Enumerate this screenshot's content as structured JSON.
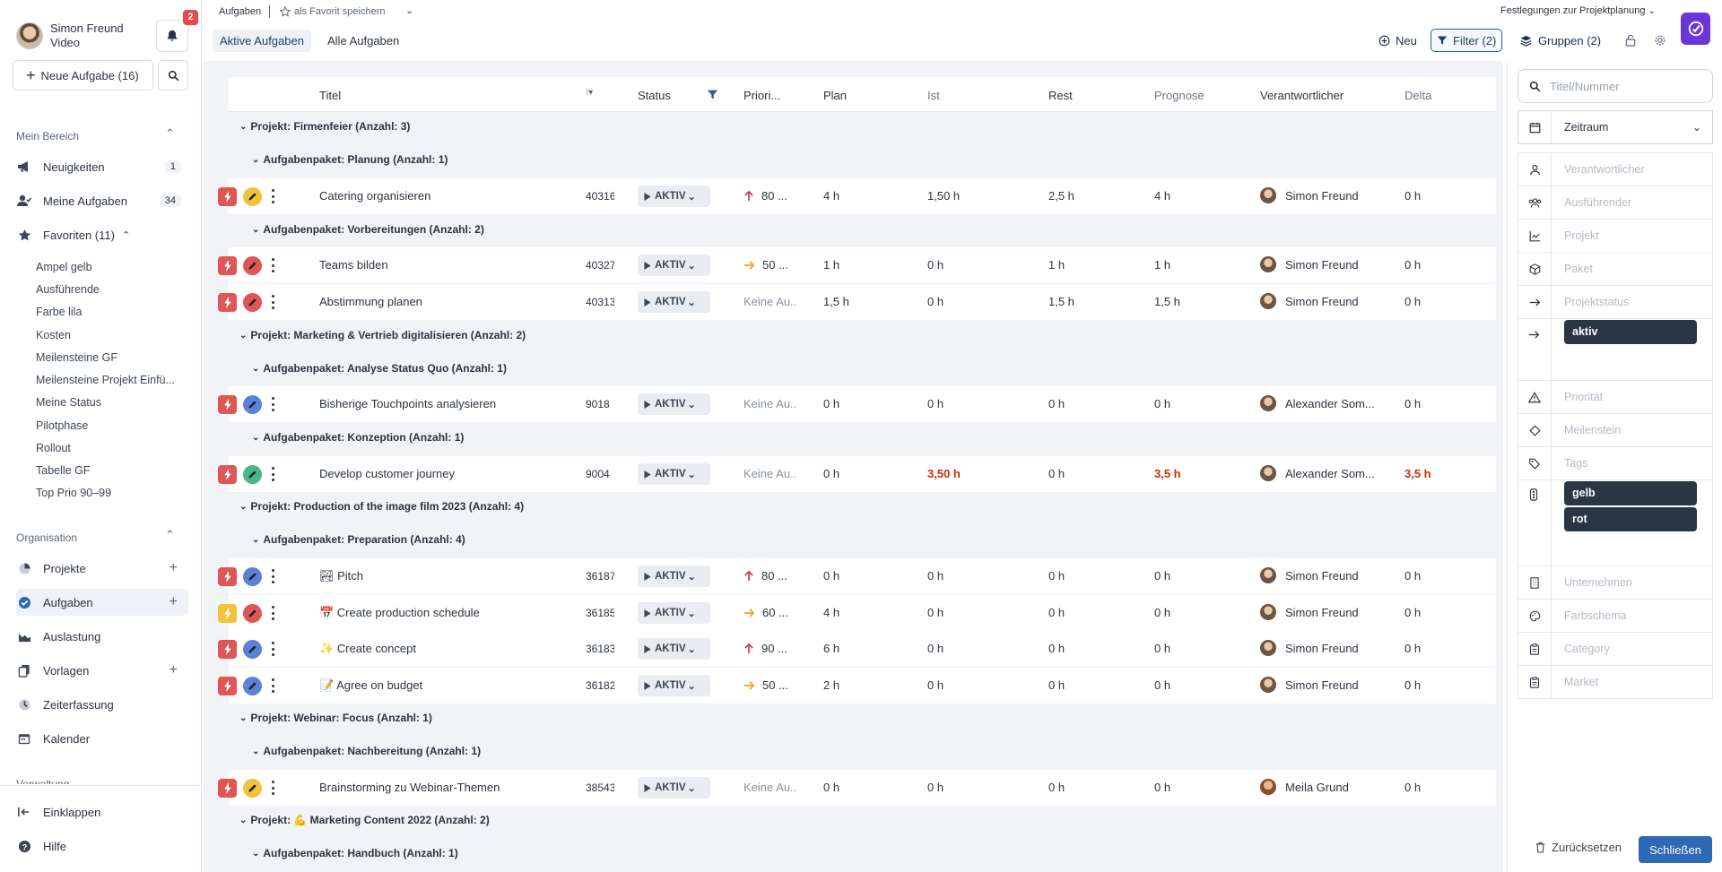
{
  "user": {
    "name": "Simon Freund",
    "subtitle": "Video",
    "notifications": "2"
  },
  "sidebar": {
    "new_task": "Neue Aufgabe (16)",
    "mein_bereich": "Mein Bereich",
    "items": [
      {
        "label": "Neuigkeiten",
        "count": "1"
      },
      {
        "label": "Meine Aufgaben",
        "count": "34"
      },
      {
        "label": "Favoriten (11)"
      }
    ],
    "favorites": [
      "Ampel gelb",
      "Ausführende",
      "Farbe lila",
      "Kosten",
      "Meilensteine GF",
      "Meilensteine Projekt Einfü...",
      "Meine Status",
      "Pilotphase",
      "Rollout",
      "Tabelle GF",
      "Top Prio 90–99"
    ],
    "organisation": "Organisation",
    "org_items": [
      "Projekte",
      "Aufgaben",
      "Auslastung",
      "Vorlagen",
      "Zeiterfassung",
      "Kalender"
    ],
    "verwaltung": "Verwaltung",
    "collapse": "Einklappen",
    "help": "Hilfe"
  },
  "topbar": {
    "breadcrumb": "Aufgaben",
    "save_favorite": "als Favorit speichern",
    "tabs": [
      "Aktive Aufgaben",
      "Alle Aufgaben"
    ],
    "settings_link": "Festlegungen zur Projektplanung",
    "new": "Neu",
    "filter": "Filter (2)",
    "groups": "Gruppen (2)"
  },
  "columns": {
    "title": "Titel",
    "status": "Status",
    "priority": "Priori...",
    "plan": "Plan",
    "ist": "Ist",
    "rest": "Rest",
    "forecast": "Prognose",
    "responsible": "Verantwortlicher",
    "delta": "Delta"
  },
  "groups": [
    "Projekt: Firmenfeier (Anzahl: 3)",
    "Aufgabenpaket: Planung (Anzahl: 1)",
    "Aufgabenpaket: Vorbereitungen (Anzahl: 2)",
    "Projekt: Marketing & Vertrieb digitalisieren (Anzahl: 2)",
    "Aufgabenpaket: Analyse Status Quo (Anzahl: 1)",
    "Aufgabenpaket: Konzeption (Anzahl: 1)",
    "Projekt: Production of the image film 2023 (Anzahl: 4)",
    "Aufgabenpaket: Preparation (Anzahl: 4)",
    "Projekt: Webinar: Focus (Anzahl: 1)",
    "Aufgabenpaket: Nachbereitung (Anzahl: 1)",
    "Projekt: 💪 Marketing Content 2022 (Anzahl: 2)",
    "Aufgabenpaket: Handbuch (Anzahl: 1)"
  ],
  "rows": [
    {
      "title": "Catering organisieren",
      "num": "40316",
      "status": "AKTIV",
      "prio": "80 ...",
      "plan": "4 h",
      "ist": "1,50 h",
      "rest": "2,5 h",
      "forecast": "4 h",
      "resp": "Simon Freund",
      "delta": "0 h"
    },
    {
      "title": "Teams bilden",
      "num": "40327",
      "status": "AKTIV",
      "prio": "50 ...",
      "plan": "1 h",
      "ist": "0 h",
      "rest": "1 h",
      "forecast": "1 h",
      "resp": "Simon Freund",
      "delta": "0 h"
    },
    {
      "title": "Abstimmung planen",
      "num": "40313",
      "status": "AKTIV",
      "prio": "Keine Au...",
      "plan": "1,5 h",
      "ist": "0 h",
      "rest": "1,5 h",
      "forecast": "1,5 h",
      "resp": "Simon Freund",
      "delta": "0 h"
    },
    {
      "title": "Bisherige Touchpoints analysieren",
      "num": "9018",
      "status": "AKTIV",
      "prio": "Keine Au...",
      "plan": "0 h",
      "ist": "0 h",
      "rest": "0 h",
      "forecast": "0 h",
      "resp": "Alexander Som...",
      "delta": "0 h"
    },
    {
      "title": "Develop customer journey",
      "num": "9004",
      "status": "AKTIV",
      "prio": "Keine Au...",
      "plan": "0 h",
      "ist": "3,50 h",
      "rest": "0 h",
      "forecast": "3,5 h",
      "resp": "Alexander Som...",
      "delta": "3,5 h"
    },
    {
      "title": "🏞 Pitch",
      "num": "36187",
      "status": "AKTIV",
      "prio": "80 ...",
      "plan": "0 h",
      "ist": "0 h",
      "rest": "0 h",
      "forecast": "0 h",
      "resp": "Simon Freund",
      "delta": "0 h"
    },
    {
      "title": "📅 Create production schedule",
      "num": "36185",
      "status": "AKTIV",
      "prio": "60 ...",
      "plan": "4 h",
      "ist": "0 h",
      "rest": "0 h",
      "forecast": "0 h",
      "resp": "Simon Freund",
      "delta": "0 h"
    },
    {
      "title": "✨ Create concept",
      "num": "36183",
      "status": "AKTIV",
      "prio": "90 ...",
      "plan": "6 h",
      "ist": "0 h",
      "rest": "0 h",
      "forecast": "0 h",
      "resp": "Simon Freund",
      "delta": "0 h"
    },
    {
      "title": "📝 Agree on budget",
      "num": "36182",
      "status": "AKTIV",
      "prio": "50 ...",
      "plan": "2 h",
      "ist": "0 h",
      "rest": "0 h",
      "forecast": "0 h",
      "resp": "Simon Freund",
      "delta": "0 h"
    },
    {
      "title": "Brainstorming zu Webinar-Themen",
      "num": "38543",
      "status": "AKTIV",
      "prio": "Keine Au...",
      "plan": "0 h",
      "ist": "0 h",
      "rest": "0 h",
      "forecast": "0 h",
      "resp": "Meila Grund",
      "delta": "0 h"
    }
  ],
  "filters": {
    "search_placeholder": "Titel/Nummer",
    "period": "Zeitraum",
    "fields": [
      "Verantwortlicher",
      "Ausführender",
      "Projekt",
      "Paket",
      "Projektstatus",
      "Priorität",
      "Meilenstein",
      "Tags",
      "Unternehmen",
      "Farbschema",
      "Category",
      "Market"
    ],
    "projektstatus_chip": "aktiv",
    "tag_chips": [
      "gelb",
      "rot"
    ],
    "reset": "Zurücksetzen",
    "close": "Schließen"
  },
  "colors": {
    "accent": "#2f68b5",
    "bolt_red": "#e05555",
    "bolt_yellow": "#f2c23a",
    "status_grey": "#e9ecf0",
    "chip_dark": "#2a3545"
  }
}
